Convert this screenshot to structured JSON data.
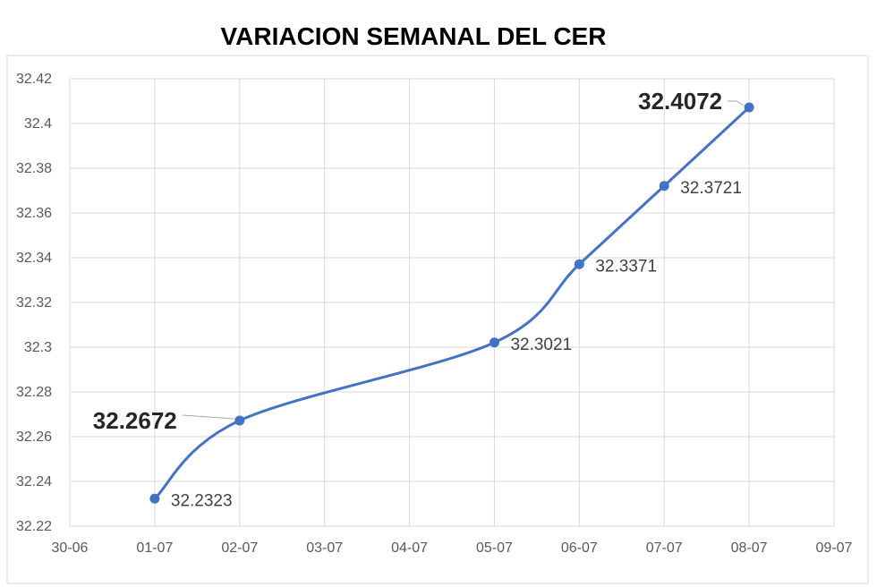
{
  "chart_data": {
    "type": "line",
    "title": "VARIACION SEMANAL DEL CER",
    "xlabel": "",
    "ylabel": "",
    "x_ticks": [
      "30-06",
      "01-07",
      "02-07",
      "03-07",
      "04-07",
      "05-07",
      "06-07",
      "07-07",
      "08-07",
      "09-07"
    ],
    "xlim": [
      0,
      9
    ],
    "ylim": [
      32.22,
      32.42
    ],
    "y_ticks": [
      32.22,
      32.24,
      32.26,
      32.28,
      32.3,
      32.32,
      32.34,
      32.36,
      32.38,
      32.4,
      32.42
    ],
    "y_tick_labels": [
      "32.22",
      "32.24",
      "32.26",
      "32.28",
      "32.3",
      "32.32",
      "32.34",
      "32.36",
      "32.38",
      "32.4",
      "32.42"
    ],
    "grid": true,
    "legend": "none",
    "line_color": "#4472C4",
    "series": [
      {
        "x": [
          "01-07",
          "02-07",
          "05-07",
          "06-07",
          "07-07",
          "08-07"
        ],
        "values": [
          32.2323,
          32.2672,
          32.3021,
          32.3371,
          32.3721,
          32.4072
        ],
        "labels": [
          "32.2323",
          "32.2672",
          "32.3021",
          "32.3371",
          "32.3721",
          "32.4072"
        ],
        "emphasized_labels": [
          "32.2672",
          "32.4072"
        ]
      }
    ]
  }
}
